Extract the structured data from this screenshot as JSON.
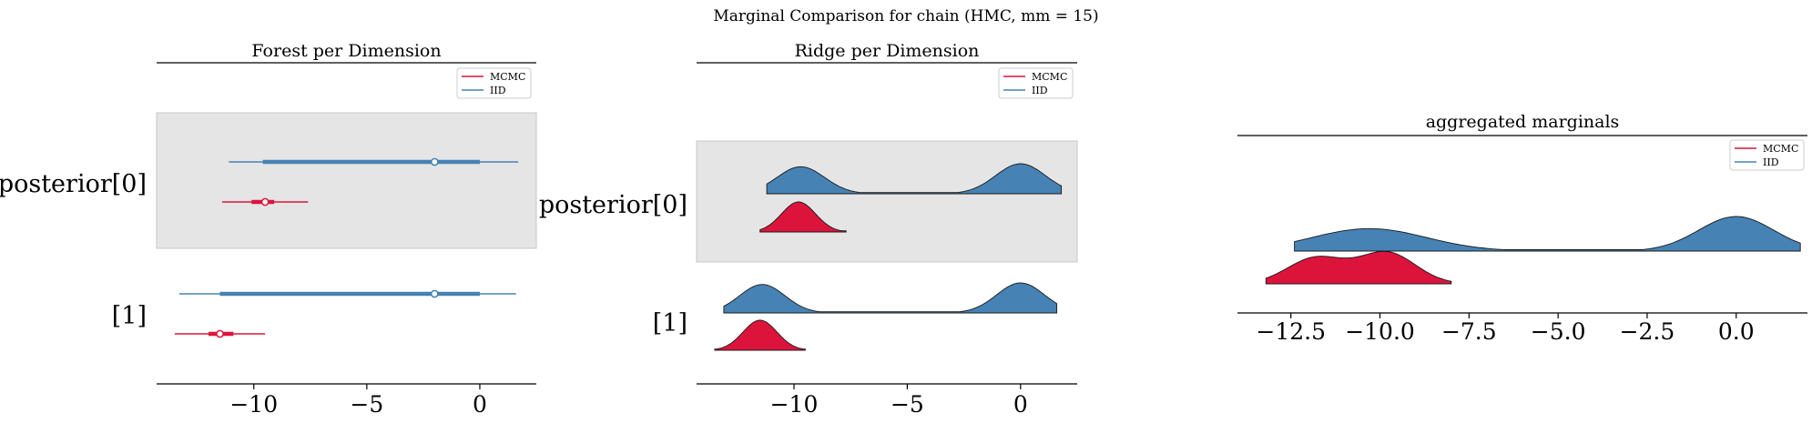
{
  "figure": {
    "suptitle": "Marginal Comparison for chain (HMC, mm = 15)"
  },
  "colors": {
    "mcmc": "#dc143c",
    "iid": "#4682b4",
    "band": "#e5e5e5"
  },
  "chart_data": [
    {
      "type": "forest",
      "title": "Forest per Dimension",
      "xlim": [
        -14.3,
        2.5
      ],
      "xticks": [
        -10,
        -5,
        0
      ],
      "xtick_labels": [
        "−10",
        "−5",
        "0"
      ],
      "ylabels": [
        "posterior[0]",
        "[1]"
      ],
      "legend": {
        "placement": "top-right",
        "entries": [
          "MCMC",
          "IID"
        ]
      },
      "series": [
        {
          "name": "IID",
          "rows": [
            {
              "hdi": [
                -11.1,
                1.7
              ],
              "iqr": [
                -9.6,
                0.0
              ],
              "median": -2.0
            },
            {
              "hdi": [
                -13.3,
                1.6
              ],
              "iqr": [
                -11.5,
                0.0
              ],
              "median": -2.0
            }
          ]
        },
        {
          "name": "MCMC",
          "rows": [
            {
              "hdi": [
                -11.4,
                -7.6
              ],
              "iqr": [
                -10.1,
                -9.1
              ],
              "median": -9.5
            },
            {
              "hdi": [
                -13.5,
                -9.5
              ],
              "iqr": [
                -12.0,
                -10.9
              ],
              "median": -11.5
            }
          ]
        }
      ]
    },
    {
      "type": "ridge",
      "title": "Ridge per Dimension",
      "xlim": [
        -14.3,
        2.5
      ],
      "xticks": [
        -10,
        -5,
        0
      ],
      "xtick_labels": [
        "−10",
        "−5",
        "0"
      ],
      "ylabels": [
        "posterior[0]",
        "[1]"
      ],
      "legend": {
        "placement": "top-right",
        "entries": [
          "MCMC",
          "IID"
        ]
      },
      "series": [
        {
          "name": "IID",
          "rows": [
            {
              "range": [
                -11.2,
                1.8
              ],
              "modes": [
                [
                  -9.7,
                  0.9,
                  1.05
                ],
                [
                  0.0,
                  1.0,
                  1.1
                ]
              ]
            },
            {
              "range": [
                -13.1,
                1.6
              ],
              "modes": [
                [
                  -11.4,
                  0.95,
                  1.0
                ],
                [
                  0.0,
                  1.0,
                  1.05
                ]
              ]
            }
          ]
        },
        {
          "name": "MCMC",
          "rows": [
            {
              "range": [
                -11.5,
                -7.7
              ],
              "modes": [
                [
                  -9.8,
                  1.0,
                  0.75
                ]
              ]
            },
            {
              "range": [
                -13.5,
                -9.5
              ],
              "modes": [
                [
                  -11.5,
                  1.0,
                  0.75
                ]
              ]
            }
          ]
        }
      ]
    },
    {
      "type": "ridge",
      "title": "aggregated marginals",
      "xlim": [
        -14.0,
        2.0
      ],
      "xticks": [
        -12.5,
        -10.0,
        -7.5,
        -5.0,
        -2.5,
        0.0
      ],
      "xtick_labels": [
        "−12.5",
        "−10.0",
        "−7.5",
        "−5.0",
        "−2.5",
        "0.0"
      ],
      "ylabels": [],
      "legend": {
        "placement": "top-right",
        "entries": [
          "MCMC",
          "IID"
        ]
      },
      "series": [
        {
          "name": "IID",
          "rows": [
            {
              "range": [
                -12.4,
                1.8
              ],
              "modes": [
                [
                  -10.3,
                  0.65,
                  1.6
                ],
                [
                  0.0,
                  1.0,
                  1.05
                ]
              ]
            }
          ]
        },
        {
          "name": "MCMC",
          "rows": [
            {
              "range": [
                -13.2,
                -8.0
              ],
              "modes": [
                [
                  -11.8,
                  0.75,
                  0.8
                ],
                [
                  -9.8,
                  0.9,
                  0.8
                ]
              ]
            }
          ]
        }
      ]
    }
  ]
}
